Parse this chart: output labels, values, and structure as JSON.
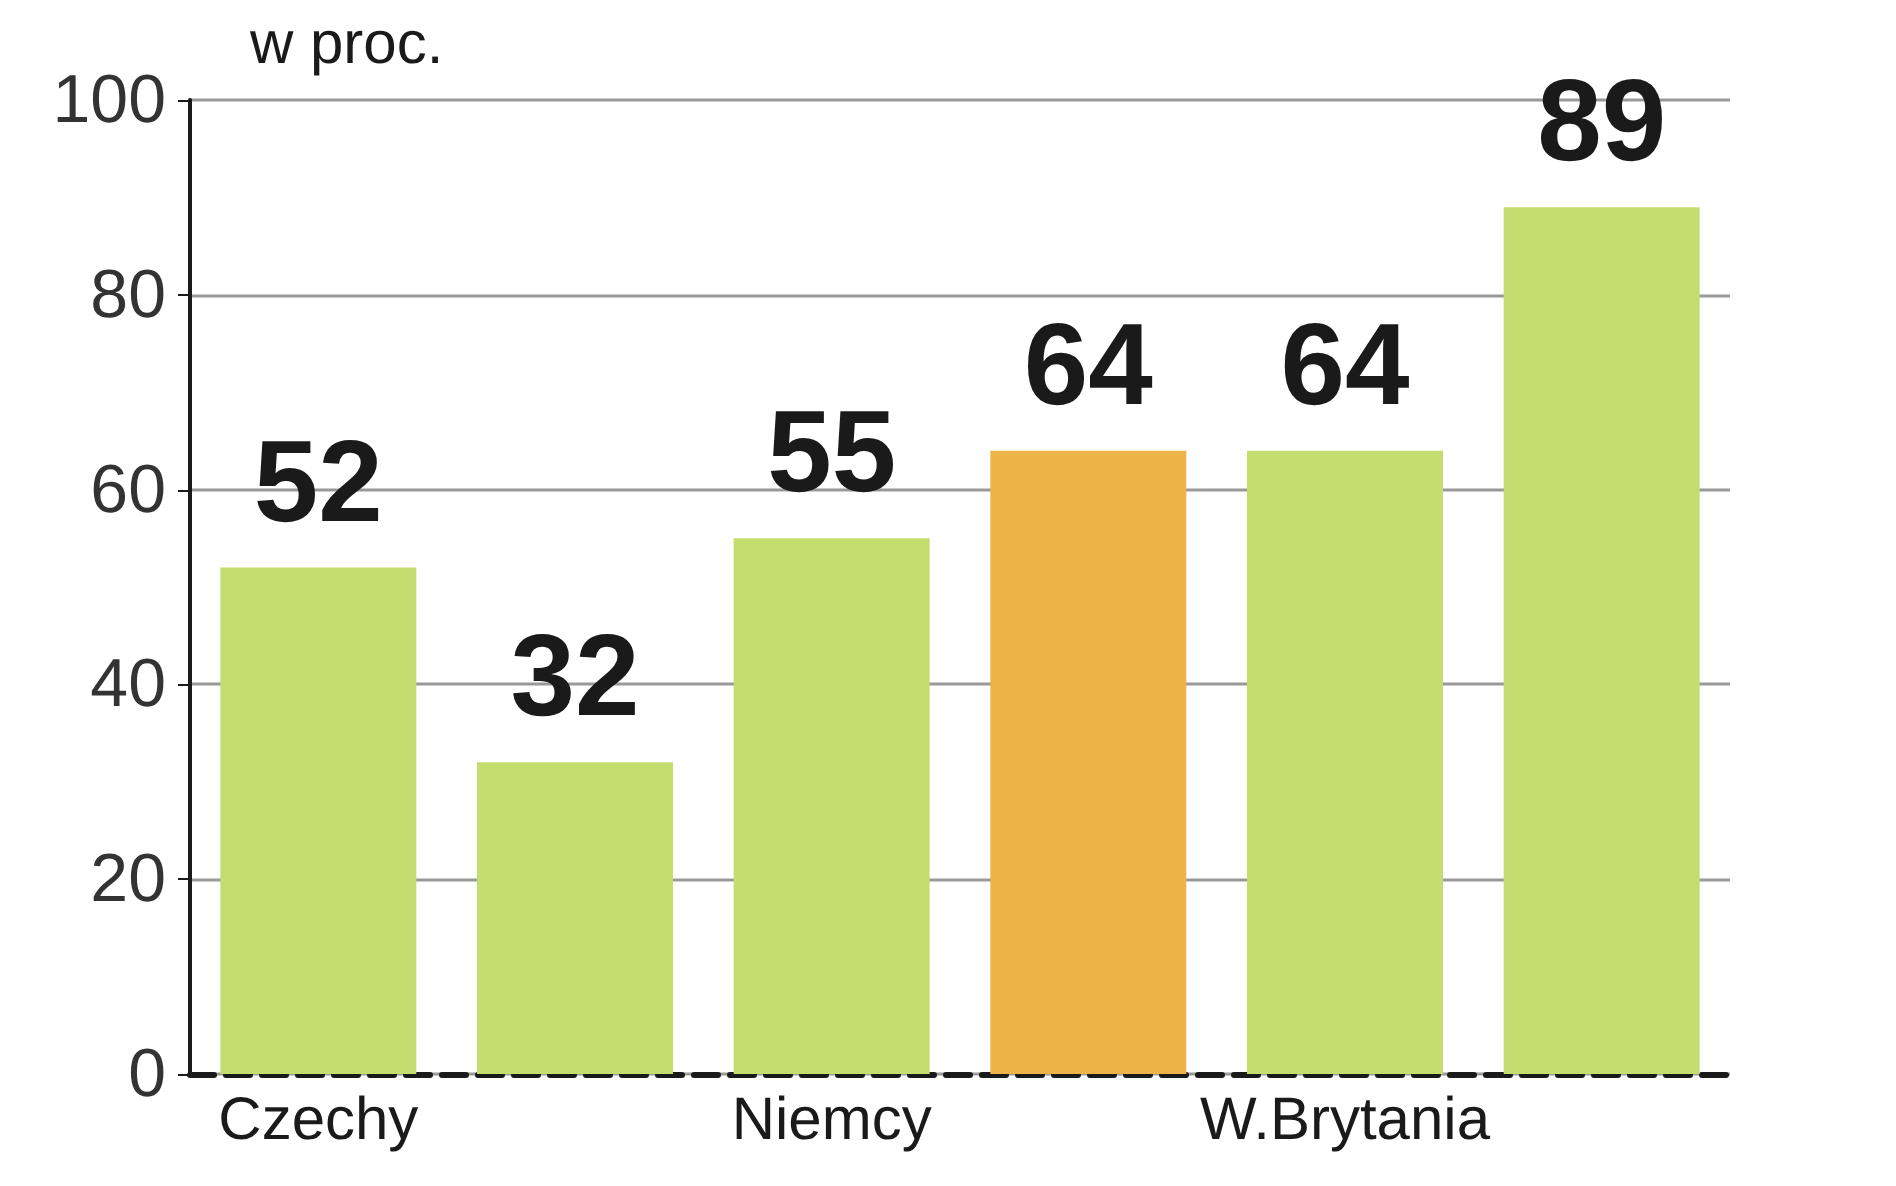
{
  "chart_data": {
    "type": "bar",
    "title": "w proc.",
    "categories": [
      "Czechy",
      null,
      "Niemcy",
      null,
      "W.Brytania",
      null
    ],
    "values": [
      52,
      32,
      55,
      64,
      64,
      89
    ],
    "colors": [
      "#c5dc6e",
      "#c5dc6e",
      "#c5dc6e",
      "#eeb448",
      "#c5dc6e",
      "#c5dc6e"
    ],
    "ylim": [
      0,
      100
    ],
    "yticks": [
      0,
      20,
      40,
      60,
      80,
      100
    ],
    "grid": "y",
    "data_labels": true
  }
}
